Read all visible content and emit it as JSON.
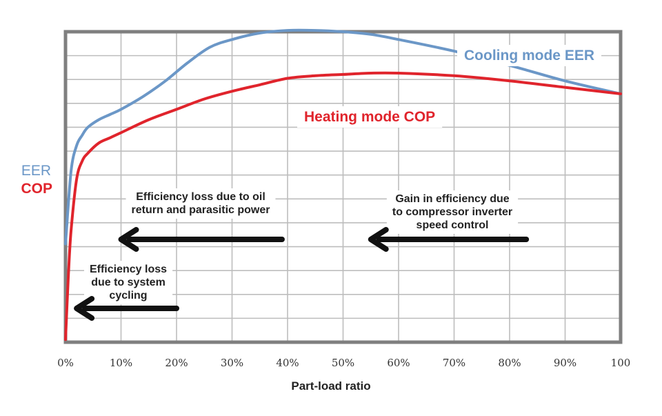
{
  "chart_data": {
    "type": "line",
    "title": "",
    "xlabel": "Part-load ratio",
    "ylabel": [
      "EER",
      "COP"
    ],
    "x_ticks": [
      "0%",
      "10%",
      "20%",
      "30%",
      "40%",
      "50%",
      "60%",
      "70%",
      "80%",
      "90%",
      "100"
    ],
    "xlim": [
      0,
      100
    ],
    "ylim": [
      0,
      12
    ],
    "grid": true,
    "series": [
      {
        "name": "Cooling mode EER",
        "color": "#6b97c7",
        "x": [
          0,
          1,
          2,
          3,
          4,
          6,
          8,
          10,
          14,
          18,
          22,
          26,
          30,
          35,
          40,
          45,
          50,
          55,
          60,
          70,
          80,
          90,
          100
        ],
        "y": [
          3.8,
          6.6,
          7.6,
          8.0,
          8.3,
          8.6,
          8.8,
          9.0,
          9.5,
          10.1,
          10.8,
          11.4,
          11.7,
          11.95,
          12.05,
          12.05,
          12.0,
          11.9,
          11.7,
          11.25,
          10.7,
          10.1,
          9.6
        ]
      },
      {
        "name": "Heating mode COP",
        "color": "#e0242c",
        "x": [
          0,
          0.5,
          1,
          2,
          3,
          4,
          6,
          8,
          10,
          15,
          20,
          25,
          30,
          35,
          40,
          45,
          50,
          55,
          60,
          70,
          80,
          90,
          100
        ],
        "y": [
          0.1,
          2.5,
          4.3,
          6.3,
          7.0,
          7.3,
          7.7,
          7.9,
          8.1,
          8.6,
          9.0,
          9.4,
          9.7,
          9.95,
          10.2,
          10.3,
          10.35,
          10.4,
          10.4,
          10.3,
          10.1,
          9.85,
          9.6
        ]
      }
    ],
    "annotations": [
      {
        "lines": [
          "Efficiency loss due to oil",
          "return and parasitic power"
        ],
        "arrow_from": 39,
        "arrow_to": 10
      },
      {
        "lines": [
          "Gain in efficiency due",
          "to compressor inverter",
          "speed control"
        ],
        "arrow_from": 83,
        "arrow_to": 55
      },
      {
        "lines": [
          "Efficiency loss",
          "due to system",
          "cycling"
        ],
        "arrow_from": 20,
        "arrow_to": 2
      }
    ]
  }
}
